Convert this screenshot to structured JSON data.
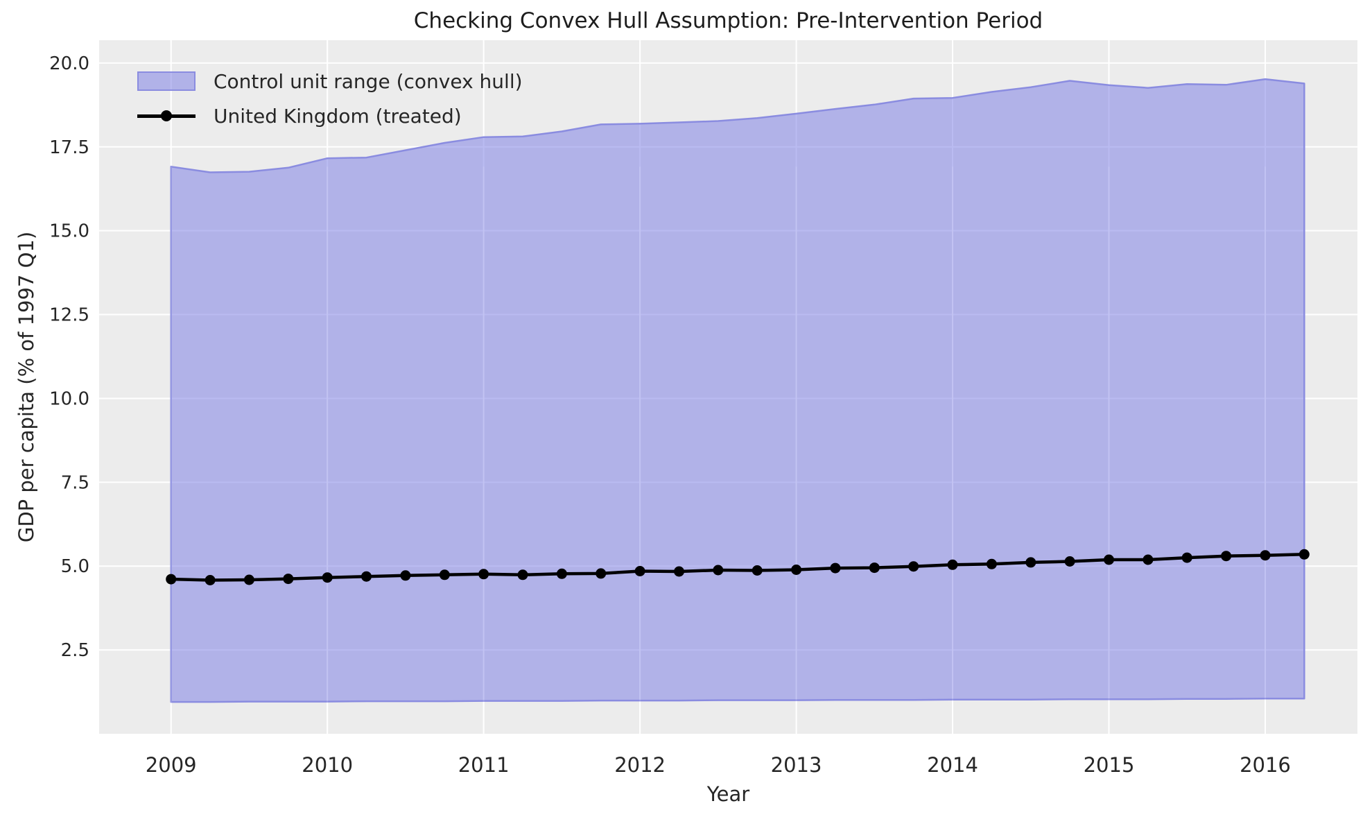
{
  "figure": {
    "title": "Checking Convex Hull Assumption: Pre-Intervention Period",
    "xlabel": "Year",
    "ylabel": "GDP per capita (% of 1997 Q1)"
  },
  "legend": {
    "position": "upper left",
    "items": [
      {
        "label": "Control unit range (convex hull)",
        "swatch": "band-patch"
      },
      {
        "label": "United Kingdom (treated)",
        "swatch": "line-with-marker"
      }
    ]
  },
  "colors": {
    "plot_background": "#ececec",
    "grid": "#ffffff",
    "band_fill": "#7678e4",
    "band_fill_opacity": 0.5,
    "band_edge": "#8a8ce0",
    "treated_line": "#000000",
    "text": "#262626"
  },
  "chart_data": {
    "type": "area",
    "title": "Checking Convex Hull Assumption: Pre-Intervention Period",
    "xlabel": "Year",
    "ylabel": "GDP per capita (% of 1997 Q1)",
    "x": [
      2009.0,
      2009.25,
      2009.5,
      2009.75,
      2010.0,
      2010.25,
      2010.5,
      2010.75,
      2011.0,
      2011.25,
      2011.5,
      2011.75,
      2012.0,
      2012.25,
      2012.5,
      2012.75,
      2013.0,
      2013.25,
      2013.5,
      2013.75,
      2014.0,
      2014.25,
      2014.5,
      2014.75,
      2015.0,
      2015.25,
      2015.5,
      2015.75,
      2016.0,
      2016.25
    ],
    "series": [
      {
        "name": "Control unit range (convex hull)",
        "type": "band",
        "upper": [
          16.91,
          16.74,
          16.76,
          16.88,
          17.16,
          17.18,
          17.4,
          17.62,
          17.79,
          17.81,
          17.96,
          18.17,
          18.19,
          18.23,
          18.27,
          18.36,
          18.49,
          18.63,
          18.76,
          18.94,
          18.96,
          19.14,
          19.28,
          19.47,
          19.34,
          19.26,
          19.37,
          19.35,
          19.52,
          19.39
        ],
        "lower": [
          0.95,
          0.95,
          0.96,
          0.96,
          0.96,
          0.97,
          0.97,
          0.97,
          0.98,
          0.98,
          0.98,
          0.99,
          0.99,
          0.99,
          1.0,
          1.0,
          1.0,
          1.01,
          1.01,
          1.01,
          1.02,
          1.02,
          1.02,
          1.03,
          1.03,
          1.03,
          1.04,
          1.04,
          1.05,
          1.05
        ]
      },
      {
        "name": "United Kingdom (treated)",
        "type": "line",
        "marker": "circle",
        "values": [
          4.61,
          4.58,
          4.59,
          4.62,
          4.66,
          4.69,
          4.72,
          4.74,
          4.76,
          4.74,
          4.77,
          4.78,
          4.85,
          4.84,
          4.88,
          4.87,
          4.89,
          4.94,
          4.95,
          4.99,
          5.04,
          5.06,
          5.11,
          5.14,
          5.19,
          5.19,
          5.25,
          5.3,
          5.32,
          5.35
        ]
      }
    ],
    "xticks": [
      2009,
      2010,
      2011,
      2012,
      2013,
      2014,
      2015,
      2016
    ],
    "yticks": [
      2.5,
      5.0,
      7.5,
      10.0,
      12.5,
      15.0,
      17.5,
      20.0
    ],
    "xlim": [
      2008.54,
      2016.59
    ],
    "ylim": [
      0.0,
      20.68
    ],
    "grid": true,
    "legend_position": "upper left"
  }
}
